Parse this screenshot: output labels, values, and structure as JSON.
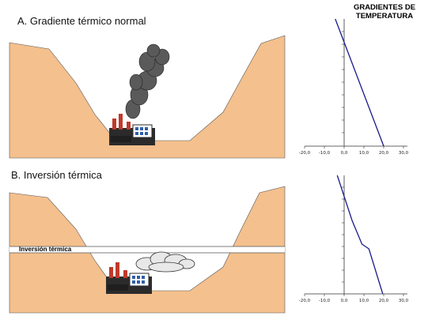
{
  "panel_a": {
    "title": "A. Gradiente térmico normal"
  },
  "panel_b": {
    "title": "B. Inversión térmica",
    "inversion_label": "Inversión térmica"
  },
  "graphs": {
    "title_line1": "GRADIENTES DE",
    "title_line2": "TEMPERATURA",
    "x_ticks": [
      "-20,0",
      "-10,0",
      "0,0",
      "10,0",
      "20,0",
      "30,0"
    ]
  },
  "colors": {
    "terrain": "#f4c08d",
    "terrain_edge": "#555555",
    "smoke": "#5a5a5a",
    "cloud": "#e8e8e8",
    "gradient_line": "#1a1a8c",
    "axis": "#333333"
  },
  "chart_data": [
    {
      "type": "line",
      "x": [
        -4.5,
        20.0
      ],
      "y": [
        1.0,
        0.0
      ],
      "xlim": [
        -20,
        30
      ],
      "x_ticks": [
        -20,
        -10,
        0,
        10,
        20,
        30
      ]
    },
    {
      "type": "line",
      "x": [
        -3.5,
        4.0,
        9.0,
        12.5,
        19.5
      ],
      "y": [
        1.0,
        0.62,
        0.42,
        0.38,
        0.0
      ],
      "xlim": [
        -20,
        30
      ],
      "x_ticks": [
        -20,
        -10,
        0,
        10,
        20,
        30
      ]
    }
  ]
}
